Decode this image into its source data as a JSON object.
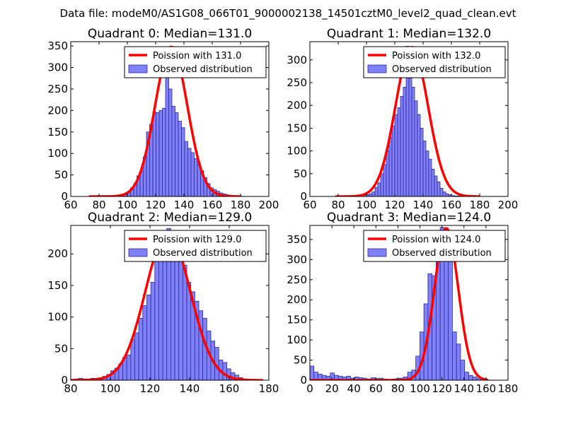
{
  "figure": {
    "suptitle": "Data file: modeM0/AS1G08_066T01_9000002138_14501cztM0_level2_quad_clean.evt",
    "colors": {
      "bar_fill": "#8080f8",
      "bar_edge": "#2a2a9a",
      "curve": "#ff0000",
      "axes": "#000000"
    }
  },
  "chart_data": [
    {
      "type": "bar",
      "title": "Quadrant 0: Median=131.0",
      "legend": [
        "Poission with 131.0",
        "Observed distribution"
      ],
      "legend_position": "top-right",
      "xlim": [
        60,
        200
      ],
      "ylim": [
        0,
        360
      ],
      "xticks": [
        60,
        80,
        100,
        120,
        140,
        160,
        180,
        200
      ],
      "yticks": [
        0,
        50,
        100,
        150,
        200,
        250,
        300,
        350
      ],
      "poisson_mean": 131.0,
      "poisson_peak": 348,
      "poisson_sigma": 11.4,
      "curve_x": [
        73,
        180
      ],
      "bin_start": 73,
      "bin_width": 2.25,
      "counts": [
        1,
        0,
        1,
        0,
        0,
        0,
        2,
        1,
        1,
        3,
        2,
        4,
        10,
        20,
        30,
        48,
        60,
        92,
        150,
        168,
        197,
        195,
        200,
        205,
        340,
        250,
        210,
        195,
        175,
        160,
        128,
        112,
        102,
        88,
        75,
        60,
        44,
        30,
        20,
        16,
        12,
        8,
        6,
        4,
        3,
        2,
        1,
        1
      ]
    },
    {
      "type": "bar",
      "title": "Quadrant 1: Median=132.0",
      "legend": [
        "Poission with 132.0",
        "Observed distribution"
      ],
      "legend_position": "top-right",
      "xlim": [
        60,
        200
      ],
      "ylim": [
        0,
        340
      ],
      "xticks": [
        60,
        80,
        100,
        120,
        140,
        160,
        180,
        200
      ],
      "yticks": [
        0,
        50,
        100,
        150,
        200,
        250,
        300
      ],
      "poisson_mean": 132.0,
      "poisson_peak": 328,
      "poisson_sigma": 11.5,
      "curve_x": [
        78,
        180
      ],
      "bin_start": 78,
      "bin_width": 2.0,
      "counts": [
        1,
        1,
        0,
        1,
        0,
        0,
        0,
        1,
        2,
        1,
        3,
        4,
        6,
        10,
        20,
        30,
        50,
        70,
        100,
        130,
        155,
        180,
        195,
        220,
        240,
        330,
        260,
        240,
        210,
        180,
        150,
        122,
        100,
        82,
        60,
        45,
        32,
        18,
        10,
        6,
        4,
        2,
        1,
        1
      ]
    },
    {
      "type": "bar",
      "title": "Quadrant 2: Median=129.0",
      "legend": [
        "Poission with 129.0",
        "Observed distribution"
      ],
      "legend_position": "top-right",
      "xlim": [
        80,
        180
      ],
      "ylim": [
        0,
        245
      ],
      "xticks": [
        80,
        100,
        120,
        140,
        160,
        180
      ],
      "yticks": [
        0,
        50,
        100,
        150,
        200
      ],
      "poisson_mean": 129.0,
      "poisson_peak": 233,
      "poisson_sigma": 11.3,
      "curve_x": [
        80,
        177
      ],
      "bin_start": 80,
      "bin_width": 2.02,
      "counts": [
        1,
        2,
        3,
        2,
        2,
        3,
        2,
        4,
        6,
        9,
        15,
        19,
        26,
        36,
        40,
        65,
        75,
        98,
        118,
        135,
        155,
        195,
        212,
        205,
        240,
        225,
        225,
        210,
        182,
        155,
        140,
        125,
        110,
        98,
        78,
        62,
        52,
        32,
        28,
        18,
        12,
        8,
        4,
        2,
        1,
        1,
        1
      ]
    },
    {
      "type": "bar",
      "title": "Quadrant 3: Median=124.0",
      "legend": [
        "Poission with 124.0",
        "Observed distribution"
      ],
      "legend_position": "top-right",
      "xlim": [
        0,
        180
      ],
      "ylim": [
        0,
        385
      ],
      "xticks": [
        0,
        20,
        40,
        60,
        80,
        100,
        120,
        140,
        160,
        180
      ],
      "yticks": [
        0,
        50,
        100,
        150,
        200,
        250,
        300,
        350
      ],
      "poisson_mean": 124.0,
      "poisson_peak": 378,
      "poisson_sigma": 10.8,
      "curve_x": [
        0,
        162
      ],
      "bin_start": 0,
      "bin_width": 3.7,
      "counts": [
        35,
        20,
        15,
        12,
        10,
        18,
        12,
        10,
        8,
        10,
        5,
        8,
        6,
        5,
        3,
        6,
        4,
        5,
        3,
        2,
        3,
        4,
        5,
        8,
        20,
        25,
        60,
        120,
        190,
        265,
        260,
        340,
        380,
        315,
        345,
        120,
        90,
        50,
        20,
        12,
        8,
        4
      ]
    }
  ]
}
